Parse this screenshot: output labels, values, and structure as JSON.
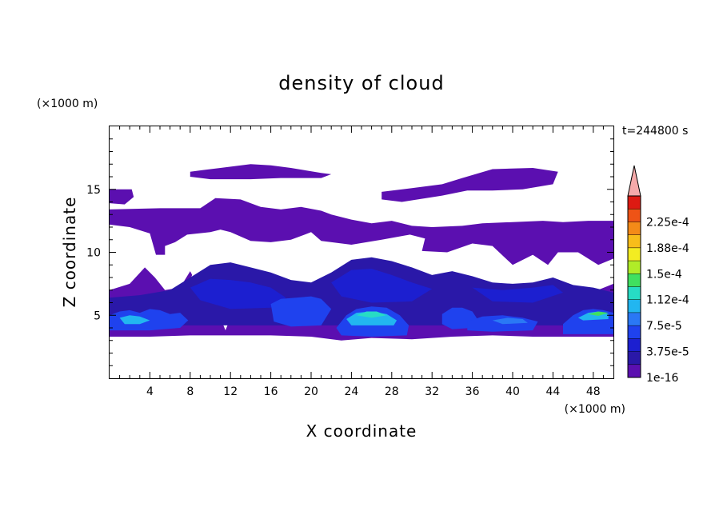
{
  "chart_data": {
    "type": "heatmap",
    "title": "density of cloud",
    "xlabel": "X coordinate",
    "ylabel": "Z coordinate",
    "x_unit": "(×1000 m)",
    "y_unit": "(×1000 m)",
    "time_label": "t=244800 s",
    "xlim": [
      0,
      50
    ],
    "ylim": [
      0,
      20
    ],
    "xticks": [
      4,
      8,
      12,
      16,
      20,
      24,
      28,
      32,
      36,
      40,
      44,
      48
    ],
    "yticks": [
      5,
      10,
      15
    ],
    "colorbar": {
      "levels": [
        1e-16,
        1.875e-05,
        3.75e-05,
        5.625e-05,
        7.5e-05,
        9.375e-05,
        0.0001125,
        0.00013125,
        0.00015,
        0.00016875,
        0.0001875,
        0.00020625,
        0.000225,
        0.00024375
      ],
      "tick_labels": [
        "1e-16",
        "3.75e-5",
        "7.5e-5",
        "1.12e-4",
        "1.5e-4",
        "1.88e-4",
        "2.25e-4"
      ],
      "colors": [
        "#5b0fb0",
        "#2a18a8",
        "#1c1fd0",
        "#1f42ee",
        "#2a78f5",
        "#22b6f0",
        "#27dcc5",
        "#40e060",
        "#b0ec28",
        "#f3ec22",
        "#f8bd1a",
        "#f48a18",
        "#ee5316",
        "#dd1a12"
      ],
      "extend_color": "#f5aaaa"
    },
    "cloud_layers": [
      {
        "name": "upper_cloud_1",
        "level": 0,
        "polygon": [
          [
            8,
            16.4
          ],
          [
            11,
            16.7
          ],
          [
            14,
            17
          ],
          [
            16,
            16.9
          ],
          [
            18,
            16.7
          ],
          [
            21,
            16.3
          ],
          [
            22,
            16.2
          ],
          [
            21,
            15.9
          ],
          [
            17,
            15.9
          ],
          [
            14,
            15.8
          ],
          [
            10,
            15.8
          ],
          [
            8,
            16
          ]
        ]
      },
      {
        "name": "upper_cloud_2",
        "level": 0,
        "polygon": [
          [
            27,
            14.8
          ],
          [
            30,
            15.1
          ],
          [
            33,
            15.4
          ],
          [
            35,
            15.9
          ],
          [
            38,
            16.6
          ],
          [
            42,
            16.7
          ],
          [
            44.5,
            16.4
          ],
          [
            44,
            15.4
          ],
          [
            41,
            15
          ],
          [
            38,
            14.9
          ],
          [
            35.5,
            14.9
          ],
          [
            33,
            14.5
          ],
          [
            29,
            14
          ],
          [
            27,
            14.2
          ]
        ]
      },
      {
        "name": "left_top_patch",
        "level": 0,
        "polygon": [
          [
            0,
            15
          ],
          [
            2.2,
            15
          ],
          [
            2.4,
            14.4
          ],
          [
            1.5,
            13.8
          ],
          [
            0,
            13.9
          ]
        ]
      },
      {
        "name": "main_cloud_envelope",
        "level": 0,
        "polygon": [
          [
            0,
            13.4
          ],
          [
            5,
            13.5
          ],
          [
            9,
            13.5
          ],
          [
            10.5,
            14.3
          ],
          [
            13,
            14.2
          ],
          [
            15,
            13.6
          ],
          [
            17,
            13.4
          ],
          [
            19,
            13.6
          ],
          [
            21,
            13.3
          ],
          [
            22,
            13
          ],
          [
            24,
            12.6
          ],
          [
            26,
            12.3
          ],
          [
            28,
            12.5
          ],
          [
            30,
            12.1
          ],
          [
            32,
            12
          ],
          [
            35,
            12.1
          ],
          [
            37,
            12.3
          ],
          [
            40,
            12.4
          ],
          [
            43,
            12.5
          ],
          [
            45,
            12.4
          ],
          [
            47.5,
            12.5
          ],
          [
            50,
            12.5
          ],
          [
            50,
            3.3
          ],
          [
            46,
            3.3
          ],
          [
            42,
            3.3
          ],
          [
            38,
            3.4
          ],
          [
            34,
            3.3
          ],
          [
            30,
            3.1
          ],
          [
            26,
            3.2
          ],
          [
            23,
            3
          ],
          [
            20,
            3.3
          ],
          [
            16,
            3.4
          ],
          [
            12,
            3.4
          ],
          [
            8,
            3.4
          ],
          [
            4,
            3.3
          ],
          [
            0,
            3.3
          ],
          [
            0,
            7
          ],
          [
            2,
            7.5
          ],
          [
            3.5,
            8.8
          ],
          [
            4.5,
            8
          ],
          [
            5.5,
            7
          ],
          [
            7,
            7.2
          ],
          [
            8,
            8.5
          ],
          [
            8.2,
            8.2
          ],
          [
            7.5,
            7
          ],
          [
            9,
            6.5
          ],
          [
            10,
            5.2
          ],
          [
            11,
            4.8
          ],
          [
            11.5,
            3.8
          ],
          [
            12,
            4.8
          ],
          [
            13,
            5.7
          ],
          [
            14,
            5.5
          ],
          [
            14.5,
            4.4
          ],
          [
            15.5,
            4.8
          ],
          [
            16.3,
            4.9
          ],
          [
            17,
            4.8
          ],
          [
            18,
            5.6
          ],
          [
            21,
            6.2
          ],
          [
            25,
            6
          ],
          [
            28,
            6
          ],
          [
            32,
            6
          ],
          [
            36,
            6.3
          ],
          [
            40,
            6.6
          ],
          [
            44,
            7.2
          ],
          [
            46,
            6.9
          ],
          [
            47.5,
            6.7
          ],
          [
            50,
            7.5
          ],
          [
            50,
            9.5
          ],
          [
            48.5,
            9
          ],
          [
            46.5,
            10
          ],
          [
            44.5,
            10
          ],
          [
            43.5,
            9
          ],
          [
            42,
            9.8
          ],
          [
            40,
            9
          ],
          [
            38,
            10.5
          ],
          [
            36,
            10.7
          ],
          [
            33.5,
            10
          ],
          [
            31,
            10.1
          ],
          [
            31.3,
            11.1
          ],
          [
            29.8,
            11.4
          ],
          [
            27,
            11
          ],
          [
            24,
            10.6
          ],
          [
            21,
            10.9
          ],
          [
            20,
            11.6
          ],
          [
            18,
            11
          ],
          [
            16,
            10.8
          ],
          [
            14,
            10.9
          ],
          [
            12,
            11.6
          ],
          [
            11,
            11.8
          ],
          [
            10,
            11.6
          ],
          [
            7.7,
            11.4
          ],
          [
            6.5,
            10.8
          ],
          [
            5.5,
            10.5
          ],
          [
            5.5,
            9.8
          ],
          [
            4.6,
            9.8
          ],
          [
            4,
            11.5
          ],
          [
            2,
            12
          ],
          [
            0,
            12.2
          ]
        ]
      },
      {
        "name": "mid_layer",
        "level": 1,
        "polygon": [
          [
            0,
            6.4
          ],
          [
            3,
            6.6
          ],
          [
            6,
            7
          ],
          [
            8,
            8
          ],
          [
            10,
            9
          ],
          [
            12,
            9.2
          ],
          [
            14,
            8.8
          ],
          [
            16,
            8.4
          ],
          [
            18,
            7.8
          ],
          [
            20,
            7.6
          ],
          [
            22,
            8.4
          ],
          [
            24,
            9.4
          ],
          [
            26,
            9.6
          ],
          [
            28,
            9.3
          ],
          [
            30,
            8.8
          ],
          [
            32,
            8.2
          ],
          [
            34,
            8.5
          ],
          [
            36,
            8.1
          ],
          [
            38,
            7.6
          ],
          [
            40,
            7.5
          ],
          [
            42,
            7.6
          ],
          [
            44,
            8
          ],
          [
            46,
            7.4
          ],
          [
            48,
            7.2
          ],
          [
            50,
            6.8
          ],
          [
            50,
            4.2
          ],
          [
            0,
            4.2
          ]
        ]
      },
      {
        "name": "mid_core_west",
        "level": 2,
        "polygon": [
          [
            8,
            7.2
          ],
          [
            10,
            7.9
          ],
          [
            12,
            7.8
          ],
          [
            14,
            7.6
          ],
          [
            16,
            7.2
          ],
          [
            17.5,
            6.4
          ],
          [
            16,
            5.6
          ],
          [
            12,
            5.5
          ],
          [
            9,
            6.2
          ]
        ]
      },
      {
        "name": "mid_core_center",
        "level": 2,
        "polygon": [
          [
            22,
            7.6
          ],
          [
            24,
            8.6
          ],
          [
            26,
            8.7
          ],
          [
            28,
            8.2
          ],
          [
            30,
            7.6
          ],
          [
            32,
            7.1
          ],
          [
            30,
            6.1
          ],
          [
            26,
            6
          ],
          [
            23,
            6.5
          ]
        ]
      },
      {
        "name": "mid_core_east",
        "level": 2,
        "polygon": [
          [
            36,
            7.2
          ],
          [
            39,
            7
          ],
          [
            42,
            7.2
          ],
          [
            44,
            7.4
          ],
          [
            45,
            6.8
          ],
          [
            42,
            6
          ],
          [
            38,
            6.1
          ]
        ]
      },
      {
        "name": "band_west",
        "level": 3,
        "polygon": [
          [
            0,
            5
          ],
          [
            1,
            5.3
          ],
          [
            2,
            5.4
          ],
          [
            3,
            5.2
          ],
          [
            4,
            5.5
          ],
          [
            5,
            5.4
          ],
          [
            6,
            5.1
          ],
          [
            7,
            5.2
          ],
          [
            7.8,
            4.6
          ],
          [
            7,
            4
          ],
          [
            4,
            3.8
          ],
          [
            0,
            3.8
          ]
        ]
      },
      {
        "name": "band_w16",
        "level": 3,
        "polygon": [
          [
            16,
            5.9
          ],
          [
            17,
            6.3
          ],
          [
            18.5,
            6.4
          ],
          [
            20,
            6.5
          ],
          [
            21,
            6.3
          ],
          [
            22,
            5.5
          ],
          [
            21,
            4.2
          ],
          [
            18,
            4.1
          ],
          [
            16.3,
            4.5
          ]
        ]
      },
      {
        "name": "arc_center",
        "level": 3,
        "polygon": [
          [
            22.5,
            4
          ],
          [
            23.5,
            5
          ],
          [
            24.5,
            5.5
          ],
          [
            26,
            5.7
          ],
          [
            27.5,
            5.6
          ],
          [
            28.8,
            5
          ],
          [
            29.7,
            4.2
          ],
          [
            29.5,
            3.4
          ],
          [
            26,
            3.3
          ],
          [
            23,
            3.4
          ]
        ]
      },
      {
        "name": "band_34",
        "level": 3,
        "polygon": [
          [
            33,
            5.1
          ],
          [
            34,
            5.6
          ],
          [
            35,
            5.6
          ],
          [
            36,
            5.3
          ],
          [
            36.5,
            4.7
          ],
          [
            36,
            4
          ],
          [
            34,
            3.9
          ],
          [
            33,
            4.3
          ]
        ]
      },
      {
        "name": "band_e40",
        "level": 3,
        "polygon": [
          [
            35.5,
            4.5
          ],
          [
            37,
            4.9
          ],
          [
            39,
            5
          ],
          [
            41,
            4.8
          ],
          [
            42.5,
            4.5
          ],
          [
            42,
            3.8
          ],
          [
            38,
            3.7
          ],
          [
            35.5,
            3.8
          ]
        ]
      },
      {
        "name": "arc_east",
        "level": 3,
        "polygon": [
          [
            45,
            4.3
          ],
          [
            46,
            5
          ],
          [
            47,
            5.4
          ],
          [
            48,
            5.5
          ],
          [
            49,
            5.4
          ],
          [
            50,
            5.2
          ],
          [
            50,
            3.5
          ],
          [
            45,
            3.5
          ]
        ]
      },
      {
        "name": "core_west",
        "level": 5,
        "polygon": [
          [
            1,
            4.8
          ],
          [
            2,
            5
          ],
          [
            3,
            4.9
          ],
          [
            4,
            4.6
          ],
          [
            3,
            4.3
          ],
          [
            1.5,
            4.3
          ]
        ]
      },
      {
        "name": "core_center",
        "level": 5,
        "polygon": [
          [
            23.5,
            4.7
          ],
          [
            24.5,
            5.2
          ],
          [
            26,
            5.3
          ],
          [
            27.5,
            5.1
          ],
          [
            28.5,
            4.6
          ],
          [
            28.2,
            4.2
          ],
          [
            24,
            4.2
          ]
        ]
      },
      {
        "name": "core_east",
        "level": 5,
        "polygon": [
          [
            46.5,
            4.8
          ],
          [
            47.5,
            5.2
          ],
          [
            48.5,
            5.3
          ],
          [
            49.5,
            5.1
          ],
          [
            49.5,
            4.7
          ],
          [
            47,
            4.6
          ]
        ]
      },
      {
        "name": "core_e40",
        "level": 4,
        "polygon": [
          [
            38,
            4.6
          ],
          [
            39.5,
            4.8
          ],
          [
            41,
            4.7
          ],
          [
            41.5,
            4.4
          ],
          [
            39,
            4.3
          ]
        ]
      },
      {
        "name": "core_center_hot",
        "level": 6,
        "polygon": [
          [
            24.5,
            5
          ],
          [
            25.5,
            5.3
          ],
          [
            26.5,
            5.3
          ],
          [
            27.5,
            5
          ],
          [
            26,
            4.8
          ]
        ]
      },
      {
        "name": "core_east_hot",
        "level": 7,
        "polygon": [
          [
            47.5,
            5.1
          ],
          [
            48.5,
            5.3
          ],
          [
            49.5,
            5.2
          ],
          [
            48.5,
            4.95
          ]
        ]
      }
    ]
  }
}
